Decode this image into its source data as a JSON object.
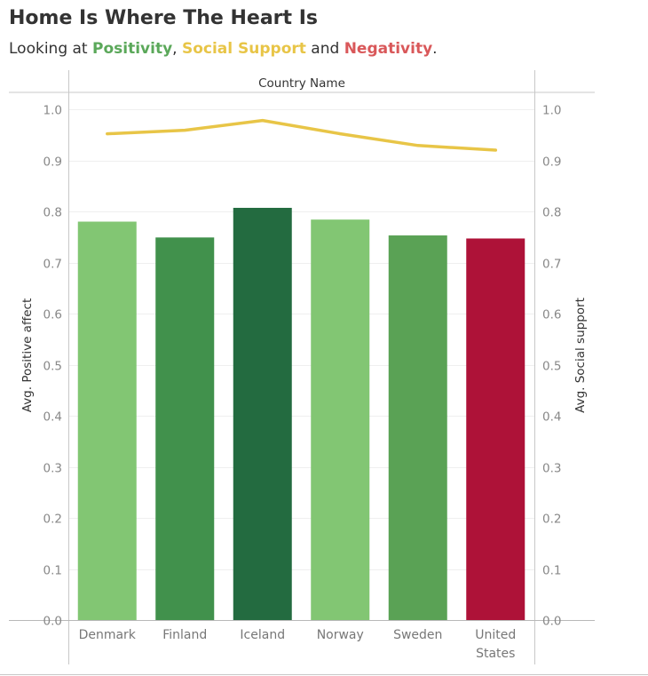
{
  "header": {
    "title": "Home Is Where The Heart Is",
    "subtitle_prefix": "Looking at ",
    "subtitle_word1": "Positivity",
    "subtitle_sep1": ", ",
    "subtitle_word2": "Social Support",
    "subtitle_sep2": " and ",
    "subtitle_word3": "Negativity",
    "subtitle_suffix": ".",
    "word1_color": "#5ba85a",
    "word2_color": "#e8c547",
    "word3_color": "#d9585a"
  },
  "chart_data": {
    "type": "bar",
    "column_header": "Country Name",
    "categories": [
      [
        "Denmark"
      ],
      [
        "Finland"
      ],
      [
        "Iceland"
      ],
      [
        "Norway"
      ],
      [
        "Sweden"
      ],
      [
        "United",
        "States"
      ]
    ],
    "series": [
      {
        "name": "Avg. Positive affect",
        "kind": "bar",
        "axis": "left",
        "values": [
          0.78,
          0.749,
          0.807,
          0.784,
          0.753,
          0.747
        ],
        "colors": [
          "#82c673",
          "#41914c",
          "#236b40",
          "#82c673",
          "#5aa255",
          "#ae1238"
        ]
      },
      {
        "name": "Avg. Social support",
        "kind": "line",
        "axis": "right",
        "values": [
          0.952,
          0.959,
          0.978,
          0.952,
          0.929,
          0.92
        ],
        "color": "#e8c547"
      }
    ],
    "ylabel_left": "Avg. Positive affect",
    "ylabel_right": "Avg. Social support",
    "ylim": [
      0,
      1
    ],
    "yticks": [
      "0.0",
      "0.1",
      "0.2",
      "0.3",
      "0.4",
      "0.5",
      "0.6",
      "0.7",
      "0.8",
      "0.9",
      "1.0"
    ],
    "grid": true
  }
}
